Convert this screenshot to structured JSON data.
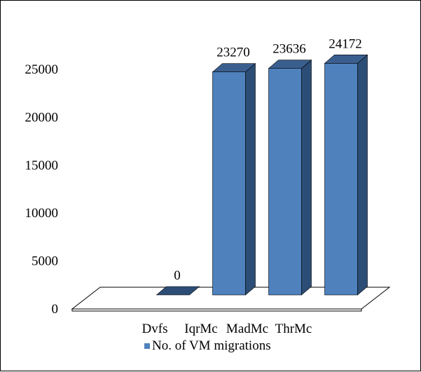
{
  "chart_data": {
    "type": "bar",
    "categories": [
      "Dvfs",
      "IqrMc",
      "MadMc",
      "ThrMc"
    ],
    "series": [
      {
        "name": "No. of VM migrations",
        "values": [
          0,
          23270,
          23636,
          24172
        ]
      }
    ],
    "data_labels": [
      "0",
      "23270",
      "23636",
      "24172"
    ],
    "yticks": [
      "0",
      "5000",
      "10000",
      "15000",
      "20000",
      "25000"
    ],
    "ylim": [
      0,
      25000
    ],
    "grid": false,
    "legend_position": "bottom",
    "colors": {
      "bar_front": "#4f81bd",
      "bar_side": "#2c4d75",
      "bar_top": "#3a5f8f",
      "floor": "#ffffff",
      "outline": "#000000"
    }
  }
}
